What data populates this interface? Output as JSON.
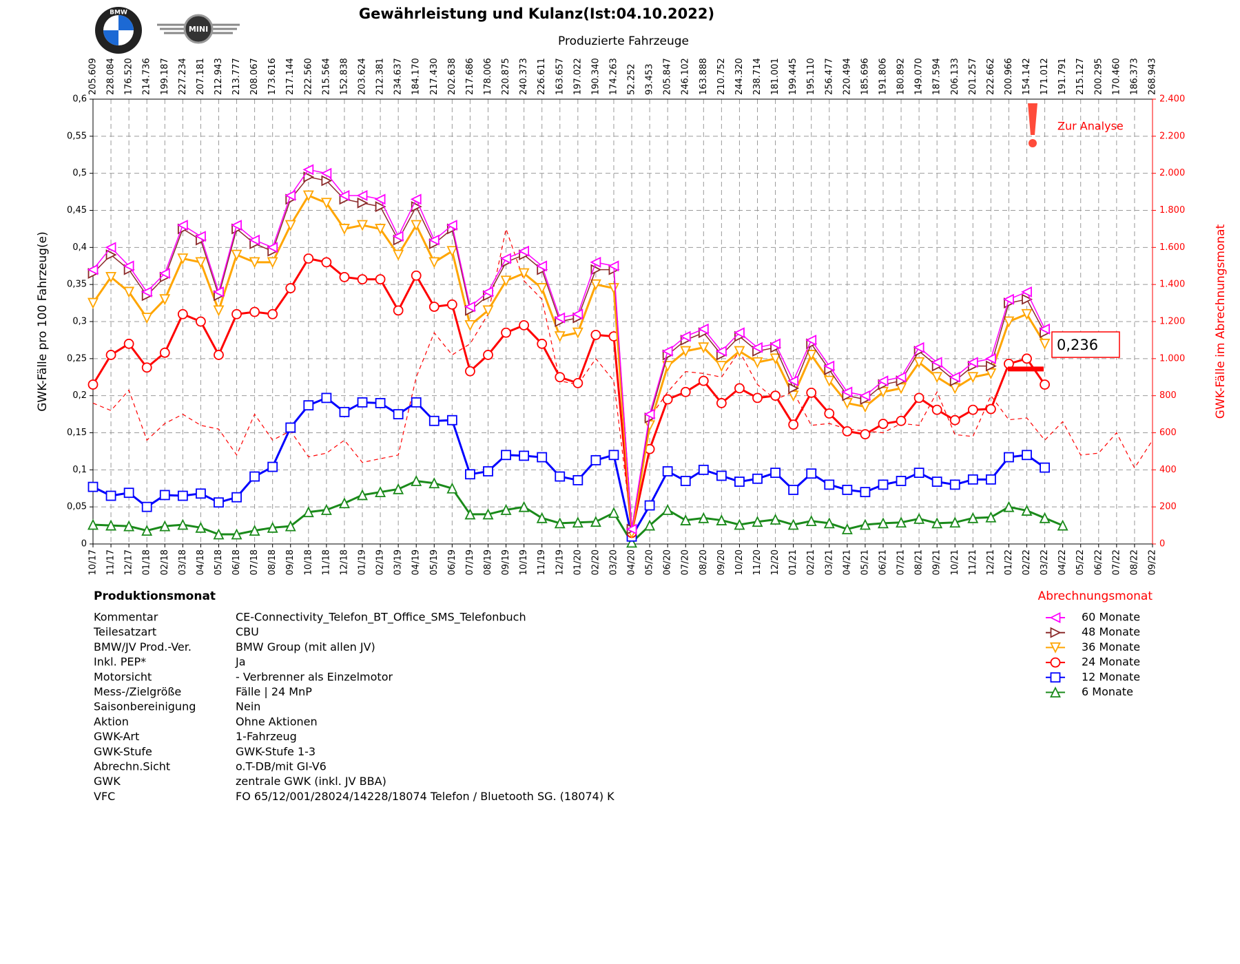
{
  "logos": {
    "bmw": "BMW",
    "mini": "MINI"
  },
  "chart_data": {
    "type": "line",
    "title": "Gewährleistung und Kulanz(Ist:04.10.2022)",
    "subtitle": "Produzierte Fahrzeuge",
    "y_label": "GWK-Fälle pro 100 Fahrzeug(e)",
    "y2_label": "GWK-Fälle im Abrechnungsmonat",
    "legend_title": "Abrechnungsmonat",
    "production_counts": [
      "205.609",
      "228.084",
      "176.520",
      "214.736",
      "199.187",
      "227.234",
      "207.181",
      "212.943",
      "213.777",
      "208.067",
      "173.616",
      "217.144",
      "222.560",
      "215.564",
      "152.838",
      "203.624",
      "212.381",
      "234.637",
      "184.170",
      "217.430",
      "202.638",
      "217.686",
      "178.006",
      "220.875",
      "240.373",
      "226.611",
      "163.657",
      "197.022",
      "190.340",
      "174.263",
      "52.252",
      "93.453",
      "205.847",
      "246.102",
      "163.888",
      "210.752",
      "244.320",
      "238.714",
      "181.001",
      "199.445",
      "195.110",
      "256.477",
      "220.494",
      "185.696",
      "191.806",
      "180.892",
      "149.070",
      "187.594",
      "206.133",
      "201.257",
      "222.662",
      "200.966",
      "154.142",
      "171.012",
      "191.791",
      "215.127",
      "200.295",
      "170.460",
      "186.373",
      "268.943"
    ],
    "categories": [
      "10/17",
      "11/17",
      "12/17",
      "01/18",
      "02/18",
      "03/18",
      "04/18",
      "05/18",
      "06/18",
      "07/18",
      "08/18",
      "09/18",
      "10/18",
      "11/18",
      "12/18",
      "01/19",
      "02/19",
      "03/19",
      "04/19",
      "05/19",
      "06/19",
      "07/19",
      "08/19",
      "09/19",
      "10/19",
      "11/19",
      "12/19",
      "01/20",
      "02/20",
      "03/20",
      "04/20",
      "05/20",
      "06/20",
      "07/20",
      "08/20",
      "09/20",
      "10/20",
      "11/20",
      "12/20",
      "01/21",
      "02/21",
      "03/21",
      "04/21",
      "05/21",
      "06/21",
      "07/21",
      "08/21",
      "09/21",
      "10/21",
      "11/21",
      "12/21",
      "01/22",
      "02/22",
      "03/22",
      "04/22",
      "05/22",
      "06/22",
      "07/22",
      "08/22",
      "09/22"
    ],
    "ylim": [
      0,
      0.6
    ],
    "yticks": [
      0,
      {
        "value": 0.05,
        "label": "0,05"
      },
      {
        "value": 0.1,
        "label": "0,1"
      },
      {
        "value": 0.15,
        "label": "0,15"
      },
      {
        "value": 0.2,
        "label": "0,2"
      },
      {
        "value": 0.25,
        "label": "0,25"
      },
      {
        "value": 0.3,
        "label": "0,3"
      },
      {
        "value": 0.35,
        "label": "0,35"
      },
      {
        "value": 0.4,
        "label": "0,4"
      },
      {
        "value": 0.45,
        "label": "0,45"
      },
      {
        "value": 0.5,
        "label": "0,5"
      },
      {
        "value": 0.55,
        "label": "0,55"
      },
      {
        "value": 0.6,
        "label": "0,6"
      }
    ],
    "y2lim": [
      0,
      2400
    ],
    "y2ticks": [
      0,
      200,
      400,
      600,
      800,
      {
        "value": 1000,
        "label": "1.000"
      },
      {
        "value": 1200,
        "label": "1.200"
      },
      {
        "value": 1400,
        "label": "1.400"
      },
      {
        "value": 1600,
        "label": "1.600"
      },
      {
        "value": 1800,
        "label": "1.800"
      },
      {
        "value": 2000,
        "label": "2.000"
      },
      {
        "value": 2200,
        "label": "2.200"
      },
      {
        "value": 2400,
        "label": "2.400"
      }
    ],
    "grid": true,
    "series": [
      {
        "name": "60 Monate",
        "color": "#ff00ff",
        "marker": "triangle-left",
        "width": 1.5,
        "values": [
          0.37,
          0.4,
          0.375,
          0.34,
          0.365,
          0.43,
          0.415,
          0.34,
          0.43,
          0.41,
          0.4,
          0.47,
          0.505,
          0.5,
          0.47,
          0.47,
          0.465,
          0.415,
          0.465,
          0.41,
          0.43,
          0.32,
          0.34,
          0.385,
          0.395,
          0.375,
          0.305,
          0.31,
          0.38,
          0.375,
          0.02,
          0.175,
          0.26,
          0.28,
          0.29,
          0.26,
          0.285,
          0.265,
          0.27,
          0.22,
          0.275,
          0.24,
          0.205,
          0.2,
          0.22,
          0.225,
          0.265,
          0.245,
          0.225,
          0.245,
          0.25,
          0.33,
          0.34,
          0.29,
          null,
          null,
          null,
          null,
          null,
          null
        ]
      },
      {
        "name": "48 Monate",
        "color": "#8b2a2a",
        "marker": "triangle-right",
        "width": 1.5,
        "values": [
          0.365,
          0.39,
          0.37,
          0.335,
          0.36,
          0.425,
          0.41,
          0.335,
          0.425,
          0.405,
          0.395,
          0.465,
          0.495,
          0.49,
          0.465,
          0.46,
          0.455,
          0.41,
          0.455,
          0.405,
          0.425,
          0.315,
          0.335,
          0.38,
          0.39,
          0.37,
          0.3,
          0.305,
          0.37,
          0.37,
          0.02,
          0.17,
          0.255,
          0.275,
          0.285,
          0.255,
          0.28,
          0.26,
          0.265,
          0.21,
          0.27,
          0.235,
          0.2,
          0.195,
          0.215,
          0.22,
          0.26,
          0.24,
          0.22,
          0.24,
          0.24,
          0.325,
          0.33,
          0.285,
          null,
          null,
          null,
          null,
          null,
          null
        ]
      },
      {
        "name": "36 Monate",
        "color": "#ffa500",
        "marker": "triangle-down",
        "width": 3,
        "values": [
          0.325,
          0.36,
          0.34,
          0.305,
          0.33,
          0.385,
          0.38,
          0.315,
          0.39,
          0.38,
          0.38,
          0.43,
          0.47,
          0.46,
          0.425,
          0.43,
          0.425,
          0.39,
          0.43,
          0.38,
          0.395,
          0.295,
          0.315,
          0.355,
          0.365,
          0.345,
          0.28,
          0.285,
          0.35,
          0.345,
          0.015,
          0.16,
          0.24,
          0.26,
          0.265,
          0.24,
          0.26,
          0.245,
          0.25,
          0.2,
          0.255,
          0.22,
          0.19,
          0.185,
          0.205,
          0.21,
          0.245,
          0.225,
          0.21,
          0.225,
          0.23,
          0.3,
          0.31,
          0.27,
          null,
          null,
          null,
          null,
          null,
          null
        ]
      },
      {
        "name": "24 Monate",
        "color": "#ff0000",
        "marker": "circle",
        "width": 3,
        "values": [
          0.215,
          0.255,
          0.27,
          0.238,
          0.258,
          0.31,
          0.3,
          0.255,
          0.31,
          0.313,
          0.31,
          0.345,
          0.385,
          0.38,
          0.36,
          0.357,
          0.357,
          0.315,
          0.362,
          0.32,
          0.323,
          0.233,
          0.255,
          0.285,
          0.295,
          0.27,
          0.225,
          0.217,
          0.282,
          0.28,
          0.015,
          0.128,
          0.195,
          0.205,
          0.22,
          0.19,
          0.21,
          0.197,
          0.2,
          0.161,
          0.204,
          0.176,
          0.152,
          0.148,
          0.162,
          0.166,
          0.197,
          0.181,
          0.167,
          0.181,
          0.182,
          0.243,
          0.25,
          0.215,
          null,
          null,
          null,
          null,
          null,
          null
        ]
      },
      {
        "name": "12 Monate",
        "color": "#0000ff",
        "marker": "square",
        "width": 3,
        "values": [
          0.077,
          0.065,
          0.069,
          0.05,
          0.066,
          0.065,
          0.068,
          0.056,
          0.063,
          0.091,
          0.104,
          0.157,
          0.187,
          0.197,
          0.178,
          0.191,
          0.19,
          0.175,
          0.191,
          0.166,
          0.167,
          0.094,
          0.098,
          0.12,
          0.119,
          0.117,
          0.091,
          0.086,
          0.113,
          0.12,
          0.01,
          0.052,
          0.098,
          0.085,
          0.1,
          0.092,
          0.084,
          0.088,
          0.096,
          0.073,
          0.095,
          0.08,
          0.073,
          0.07,
          0.08,
          0.085,
          0.096,
          0.084,
          0.08,
          0.087,
          0.087,
          0.117,
          0.12,
          0.103,
          null,
          null,
          null,
          null,
          null,
          null
        ]
      },
      {
        "name": "6 Monate",
        "color": "#1a8a1a",
        "marker": "triangle-up",
        "width": 3,
        "values": [
          0.026,
          0.025,
          0.024,
          0.018,
          0.024,
          0.026,
          0.022,
          0.013,
          0.013,
          0.018,
          0.022,
          0.024,
          0.043,
          0.046,
          0.055,
          0.066,
          0.07,
          0.074,
          0.085,
          0.082,
          0.075,
          0.04,
          0.04,
          0.046,
          0.05,
          0.035,
          0.028,
          0.029,
          0.03,
          0.042,
          0.002,
          0.025,
          0.046,
          0.032,
          0.035,
          0.032,
          0.026,
          0.03,
          0.033,
          0.026,
          0.031,
          0.028,
          0.02,
          0.026,
          0.028,
          0.029,
          0.034,
          0.028,
          0.029,
          0.035,
          0.036,
          0.05,
          0.045,
          0.035,
          0.025,
          null,
          null,
          null,
          null,
          null
        ]
      },
      {
        "color": "#ff0000",
        "axis": "y2",
        "dashed": true,
        "width": 1.2,
        "values": [
          760,
          720,
          830,
          560,
          650,
          700,
          640,
          620,
          480,
          700,
          560,
          610,
          470,
          490,
          560,
          440,
          460,
          480,
          900,
          1140,
          1020,
          1080,
          1240,
          1700,
          1420,
          1320,
          880,
          860,
          1000,
          880,
          80,
          680,
          820,
          930,
          920,
          900,
          1040,
          860,
          780,
          820,
          640,
          650,
          620,
          610,
          600,
          650,
          640,
          820,
          590,
          580,
          800,
          670,
          680,
          560,
          660,
          480,
          490,
          600,
          410,
          560
        ]
      }
    ],
    "annotations": [
      {
        "text": "Zur Analyse",
        "color": "#ff0000"
      }
    ],
    "current_value": {
      "value": 0.236,
      "label": "0,236",
      "color": "#ff0000"
    }
  },
  "info": {
    "header": "Produktionsmonat",
    "rows": [
      [
        "Kommentar",
        "CE-Connectivity_Telefon_BT_Office_SMS_Telefonbuch"
      ],
      [
        "Teilesatzart",
        "CBU"
      ],
      [
        "BMW/JV Prod.-Ver.",
        "BMW Group (mit allen JV)"
      ],
      [
        "Inkl. PEP*",
        "Ja"
      ],
      [
        "Motorsicht",
        "- Verbrenner als Einzelmotor"
      ],
      [
        "Mess-/Zielgröße",
        "Fälle | 24 MnP"
      ],
      [
        "Saisonbereinigung",
        "Nein"
      ],
      [
        "Aktion",
        "Ohne Aktionen"
      ],
      [
        "GWK-Art",
        "1-Fahrzeug"
      ],
      [
        "GWK-Stufe",
        "GWK-Stufe 1-3"
      ],
      [
        "Abrechn.Sicht",
        "o.T-DB/mit GI-V6"
      ],
      [
        "GWK",
        "zentrale GWK (inkl. JV BBA)"
      ],
      [
        "VFC",
        "FO 65/12/001/28024/14228/18074 Telefon / Bluetooth SG. (18074) K"
      ]
    ]
  }
}
